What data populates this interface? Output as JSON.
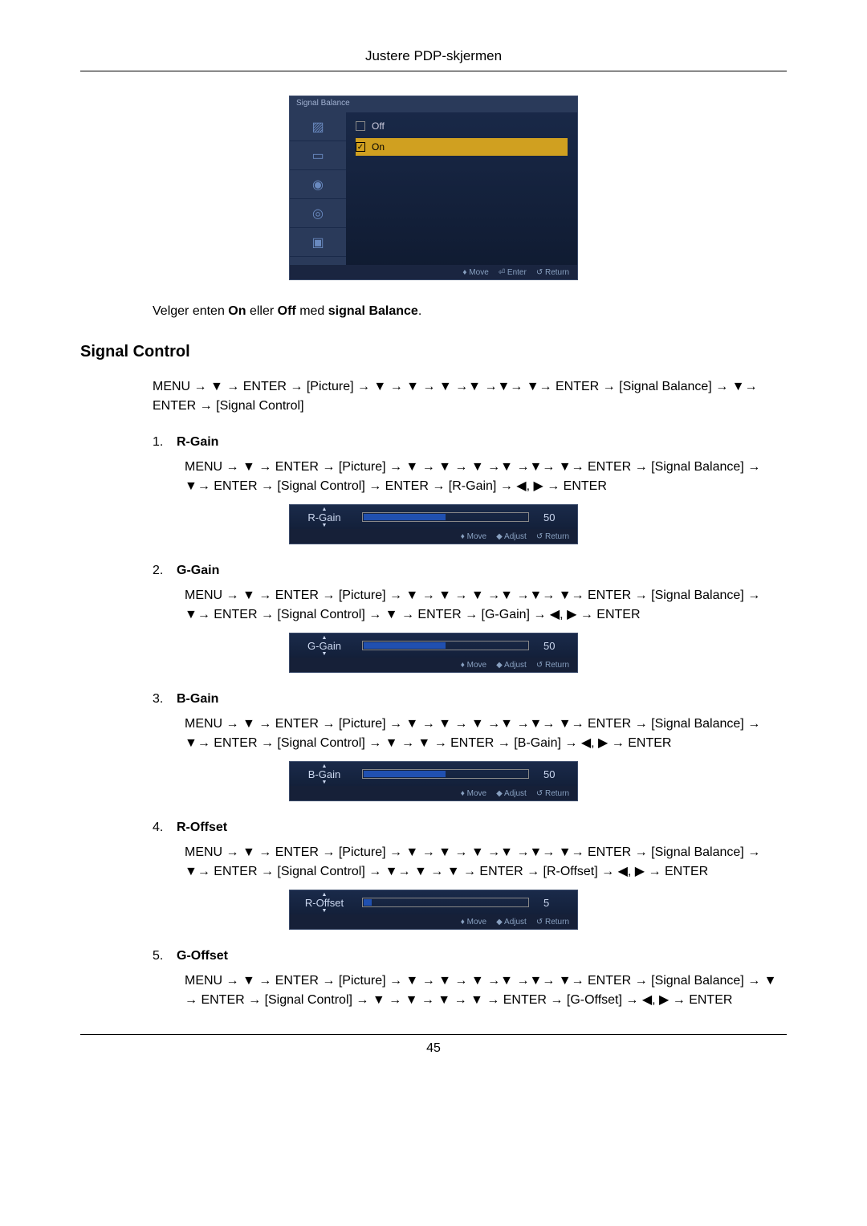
{
  "header": {
    "title": "Justere PDP-skjermen"
  },
  "osd": {
    "title": "Signal Balance",
    "options": [
      {
        "label": "Off",
        "checked": false,
        "selected": false
      },
      {
        "label": "On",
        "checked": true,
        "selected": true
      }
    ],
    "footer": {
      "move": "♦ Move",
      "enter": "⏎ Enter",
      "ret": "↺ Return"
    }
  },
  "intro": {
    "pre": "Velger enten ",
    "b1": "On",
    "mid1": " eller ",
    "b2": "Off",
    "mid2": " med ",
    "b3": "signal Balance",
    "post": "."
  },
  "section": {
    "heading": "Signal Control"
  },
  "main_nav": "MENU → ▼ → ENTER → [Picture] → ▼ → ▼ → ▼ →▼ →▼→ ▼→ ENTER → [Signal Balance] → ▼→ ENTER → [Signal Control]",
  "items": [
    {
      "num": "1.",
      "label": "R-Gain",
      "nav": "MENU → ▼ → ENTER → [Picture] → ▼ → ▼ → ▼ →▼ →▼→ ▼→ ENTER → [Signal Balance] → ▼→ ENTER → [Signal Control] → ENTER → [R-Gain] → ◀, ▶ → ENTER",
      "slider": {
        "name": "R-Gain",
        "value": "50",
        "fill_pct": 50,
        "footer": {
          "move": "♦ Move",
          "adjust": "◆ Adjust",
          "ret": "↺ Return"
        }
      }
    },
    {
      "num": "2.",
      "label": "G-Gain",
      "nav": "MENU → ▼ → ENTER → [Picture] → ▼ → ▼ → ▼ →▼ →▼→ ▼→ ENTER → [Signal Balance] → ▼→ ENTER → [Signal Control] → ▼ → ENTER → [G-Gain] → ◀, ▶ → ENTER",
      "slider": {
        "name": "G-Gain",
        "value": "50",
        "fill_pct": 50,
        "footer": {
          "move": "♦ Move",
          "adjust": "◆ Adjust",
          "ret": "↺ Return"
        }
      }
    },
    {
      "num": "3.",
      "label": "B-Gain",
      "nav": "MENU → ▼ → ENTER → [Picture] → ▼ → ▼ → ▼ →▼ →▼→ ▼→ ENTER → [Signal Balance] → ▼→ ENTER → [Signal Control] → ▼ → ▼ → ENTER → [B-Gain] → ◀, ▶ → ENTER",
      "slider": {
        "name": "B-Gain",
        "value": "50",
        "fill_pct": 50,
        "footer": {
          "move": "♦ Move",
          "adjust": "◆ Adjust",
          "ret": "↺ Return"
        }
      }
    },
    {
      "num": "4.",
      "label": "R-Offset",
      "nav": "MENU → ▼ → ENTER → [Picture] → ▼ → ▼ → ▼ →▼ →▼→ ▼→ ENTER → [Signal Balance] → ▼→ ENTER → [Signal Control] → ▼→ ▼ → ▼ → ENTER → [R-Offset] → ◀, ▶ → ENTER",
      "slider": {
        "name": "R-Offset",
        "value": "5",
        "fill_pct": 5,
        "footer": {
          "move": "♦ Move",
          "adjust": "◆ Adjust",
          "ret": "↺ Return"
        }
      }
    },
    {
      "num": "5.",
      "label": "G-Offset",
      "nav": "MENU → ▼ → ENTER → [Picture] → ▼ → ▼ → ▼ →▼ →▼→ ▼→ ENTER → [Signal Balance] → ▼ → ENTER → [Signal Control] → ▼ → ▼ → ▼ → ▼ → ENTER → [G-Offset] → ◀, ▶ → ENTER",
      "slider": null
    }
  ],
  "page_number": "45"
}
